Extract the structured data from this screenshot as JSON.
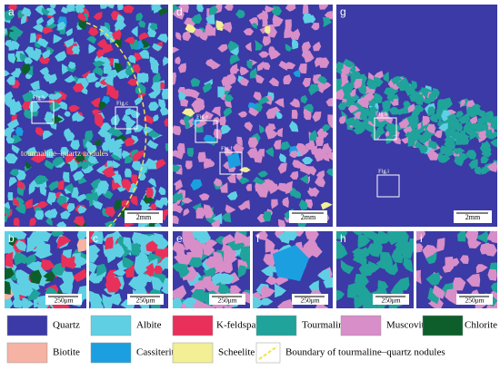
{
  "panels": [
    {
      "label": "a",
      "scale_bar": "2mm",
      "insets": [
        "Fig.b",
        "Fig.c"
      ],
      "annotation": "tourmaline–quartz nodules"
    },
    {
      "label": "d",
      "scale_bar": "2mm",
      "insets": [
        "Fig.e",
        "Fig.f"
      ]
    },
    {
      "label": "g",
      "scale_bar": "2mm",
      "insets": [
        "Fig.h",
        "Fig.i"
      ]
    },
    {
      "label": "b",
      "scale_bar": "250μm"
    },
    {
      "label": "c",
      "scale_bar": "250μm"
    },
    {
      "label": "e",
      "scale_bar": "250μm"
    },
    {
      "label": "f",
      "scale_bar": "250μm"
    },
    {
      "label": "h",
      "scale_bar": "250μm"
    },
    {
      "label": "i",
      "scale_bar": "250μm"
    }
  ],
  "legend": [
    {
      "label": "Quartz",
      "color": "#3b3aa6"
    },
    {
      "label": "Albite",
      "color": "#5fd0e4"
    },
    {
      "label": "K-feldspar",
      "color": "#e8305a"
    },
    {
      "label": "Tourmaline",
      "color": "#1fa39a"
    },
    {
      "label": "Muscovite",
      "color": "#d88ec8"
    },
    {
      "label": "Chlorite",
      "color": "#0e5e2c"
    },
    {
      "label": "Biotite",
      "color": "#f6b2a2"
    },
    {
      "label": "Cassiterite",
      "color": "#1b9fe0"
    },
    {
      "label": "Scheelite",
      "color": "#f2ef94"
    },
    {
      "label": "Boundary of tourmaline–quartz nodules",
      "color": "#f2e34a"
    }
  ]
}
